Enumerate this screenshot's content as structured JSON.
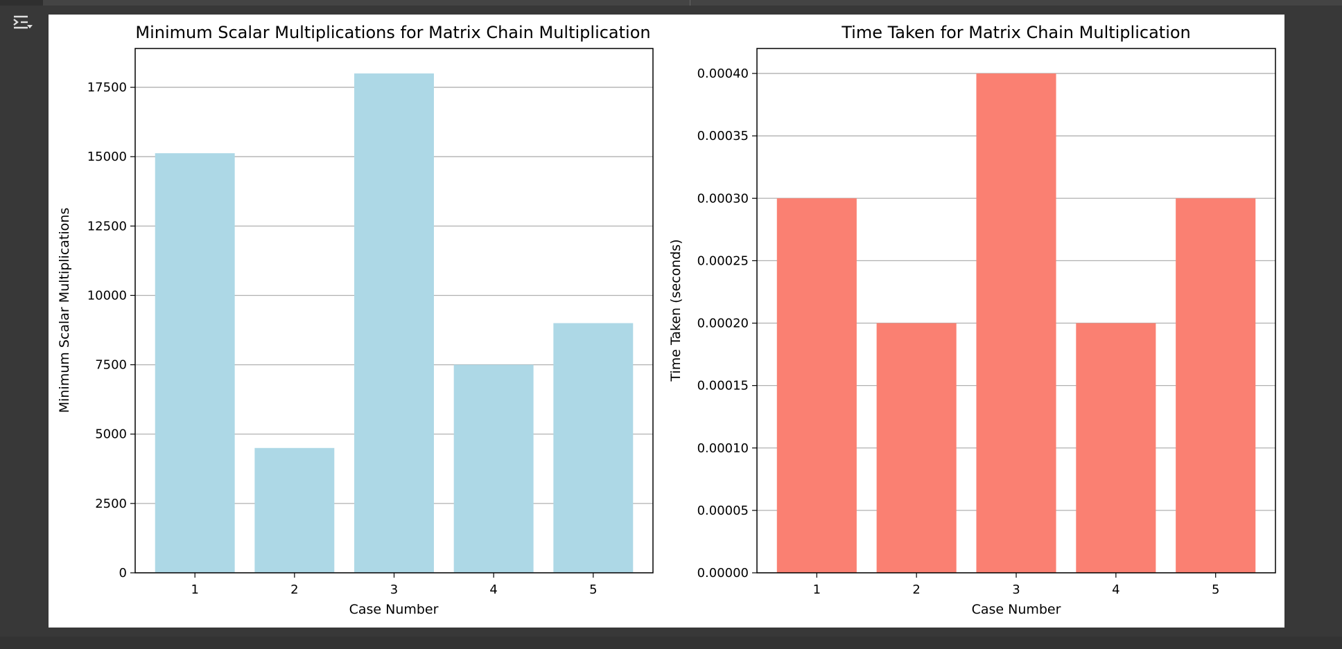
{
  "colors": {
    "left_bars": "#add8e6",
    "right_bars": "#fa8072",
    "grid": "#b0b0b0"
  },
  "toolbar": {
    "output_icon": "output-settings-icon"
  },
  "chart_data": [
    {
      "type": "bar",
      "title": "Minimum Scalar Multiplications for Matrix Chain Multiplication",
      "xlabel": "Case Number",
      "ylabel": "Minimum Scalar Multiplications",
      "categories": [
        "1",
        "2",
        "3",
        "4",
        "5"
      ],
      "values": [
        15125,
        4500,
        18000,
        7500,
        9000
      ],
      "ylim": [
        0,
        18900
      ],
      "yticks": [
        0,
        2500,
        5000,
        7500,
        10000,
        12500,
        15000,
        17500
      ],
      "ytick_labels": [
        "0",
        "2500",
        "5000",
        "7500",
        "10000",
        "12500",
        "15000",
        "17500"
      ],
      "grid": "y"
    },
    {
      "type": "bar",
      "title": "Time Taken for Matrix Chain Multiplication",
      "xlabel": "Case Number",
      "ylabel": "Time Taken (seconds)",
      "categories": [
        "1",
        "2",
        "3",
        "4",
        "5"
      ],
      "values": [
        0.0003,
        0.0002,
        0.0004,
        0.0002,
        0.0003
      ],
      "ylim": [
        0,
        0.00042
      ],
      "yticks": [
        0,
        5e-05,
        0.0001,
        0.00015,
        0.0002,
        0.00025,
        0.0003,
        0.00035,
        0.0004
      ],
      "ytick_labels": [
        "0.00000",
        "0.00005",
        "0.00010",
        "0.00015",
        "0.00020",
        "0.00025",
        "0.00030",
        "0.00035",
        "0.00040"
      ],
      "grid": "y"
    }
  ]
}
